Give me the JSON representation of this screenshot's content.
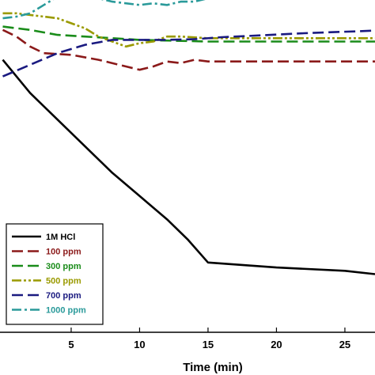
{
  "chart_data": {
    "type": "line",
    "xlabel": "Time (min)",
    "ylabel": "",
    "title": "",
    "xlim": [
      -0.2,
      27.2
    ],
    "ylim": [
      0,
      100
    ],
    "xticks": [
      5,
      10,
      15,
      20,
      25
    ],
    "grid": false,
    "legend_position": "bottom-left",
    "series": [
      {
        "name": "1M HCl",
        "color": "#000000",
        "dash": "solid",
        "x": [
          0,
          2,
          4,
          6,
          8,
          10,
          12,
          13.5,
          15,
          20,
          25,
          27.2
        ],
        "y": [
          82,
          72,
          64,
          56,
          48,
          41,
          34,
          28,
          21,
          19.5,
          18.5,
          17.5
        ]
      },
      {
        "name": "100 ppm",
        "color": "#8b1a1a",
        "dash": "longdash",
        "x": [
          0,
          1,
          2,
          3,
          5,
          7,
          9,
          10,
          11,
          12,
          13,
          14,
          15,
          20,
          25,
          27.2
        ],
        "y": [
          91,
          89,
          86,
          84,
          83.5,
          82,
          80,
          79,
          80,
          81.5,
          81,
          82,
          81.5,
          81.5,
          81.5,
          81.5
        ]
      },
      {
        "name": "300 ppm",
        "color": "#1a8c1a",
        "dash": "longdash",
        "x": [
          0,
          2,
          4,
          6,
          8,
          10,
          15,
          20,
          25,
          27.2
        ],
        "y": [
          92,
          91,
          89.5,
          89,
          88.5,
          88,
          87.5,
          87.5,
          87.5,
          87.5
        ]
      },
      {
        "name": "500 ppm",
        "color": "#9a9a00",
        "dash": "dashdotdot",
        "x": [
          0,
          1,
          2,
          3,
          4,
          5,
          6,
          7,
          8,
          9,
          10,
          11,
          12,
          13,
          15,
          20,
          25,
          27.2
        ],
        "y": [
          96,
          96,
          95.5,
          95,
          94.5,
          93,
          91.5,
          89,
          87.5,
          86,
          87,
          87.5,
          89,
          89,
          88.5,
          88.5,
          88.5,
          88.5
        ]
      },
      {
        "name": "700 ppm",
        "color": "#1a1a80",
        "dash": "longdash",
        "x": [
          0,
          2,
          4,
          6,
          8,
          10,
          12,
          14,
          16,
          18,
          20,
          22,
          24,
          26,
          27.2
        ],
        "y": [
          77,
          80.5,
          84,
          86.5,
          88,
          88,
          88,
          88.2,
          88.8,
          89.2,
          89.6,
          90,
          90.3,
          90.6,
          90.8
        ]
      },
      {
        "name": "1000 ppm",
        "color": "#2a9a9a",
        "dash": "dashdot",
        "x": [
          0,
          1,
          2,
          3,
          4,
          5,
          6,
          7,
          8,
          9,
          10,
          11,
          12,
          13,
          14,
          15,
          20,
          25,
          27.2
        ],
        "y": [
          94.5,
          95,
          96,
          98.5,
          101,
          101.5,
          101,
          100.5,
          99.5,
          99,
          98.5,
          99,
          98.5,
          99.5,
          99.5,
          100.5,
          101,
          101.5,
          101.5
        ]
      }
    ]
  }
}
